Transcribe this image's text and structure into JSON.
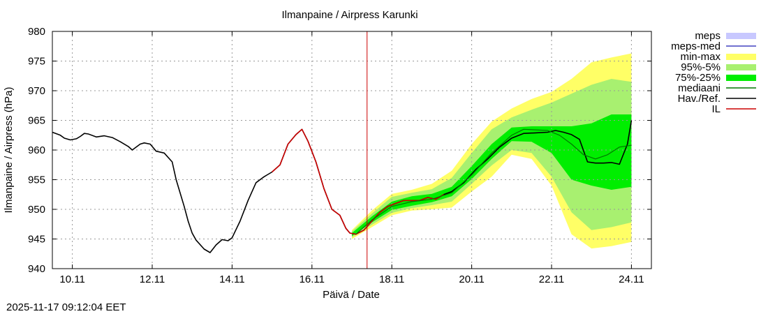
{
  "chart_data": {
    "type": "line",
    "title": "Ilmanpaine / Airpress Karunki",
    "xlabel": "Päivä / Date",
    "ylabel": "Ilmanpaine / Airpress (hPa)",
    "timestamp": "2025-11-17 09:12:04 EET",
    "x_unit": "days since 2025-11-09 00:00",
    "xlim": [
      9.5,
      24.5
    ],
    "ylim": [
      940,
      980
    ],
    "x_ticks": [
      {
        "x": 10,
        "label": "10.11"
      },
      {
        "x": 12,
        "label": "12.11"
      },
      {
        "x": 14,
        "label": "14.11"
      },
      {
        "x": 16,
        "label": "16.11"
      },
      {
        "x": 18,
        "label": "18.11"
      },
      {
        "x": 20,
        "label": "20.11"
      },
      {
        "x": 22,
        "label": "22.11"
      },
      {
        "x": 24,
        "label": "24.11"
      }
    ],
    "y_ticks": [
      940,
      945,
      950,
      955,
      960,
      965,
      970,
      975,
      980
    ],
    "grid": true,
    "legend_position": "outside-right",
    "now_line_x": 17.38,
    "colors": {
      "meps": "#c8c8ff",
      "meps_med": "#4040c0",
      "minmax": "#ffff66",
      "p95_5": "#a8f070",
      "p75_25": "#00ee00",
      "mediaani": "#007700",
      "havref": "#000000",
      "il": "#cc0000",
      "now_line": "#cc0000",
      "grid": "#999999"
    },
    "legend": [
      {
        "key": "meps",
        "label": "meps",
        "style": "band",
        "color": "#c8c8ff"
      },
      {
        "key": "meps_med",
        "label": "meps-med",
        "style": "line",
        "color": "#4040c0"
      },
      {
        "key": "minmax",
        "label": "min-max",
        "style": "band",
        "color": "#ffff66"
      },
      {
        "key": "p95_5",
        "label": "95%-5%",
        "style": "band",
        "color": "#a8f070"
      },
      {
        "key": "p75_25",
        "label": "75%-25%",
        "style": "band",
        "color": "#00ee00"
      },
      {
        "key": "mediaani",
        "label": "mediaani",
        "style": "line",
        "color": "#007700"
      },
      {
        "key": "havref",
        "label": "Hav./Ref.",
        "style": "line",
        "color": "#000000"
      },
      {
        "key": "il",
        "label": "IL",
        "style": "line",
        "color": "#cc0000"
      }
    ],
    "series": [
      {
        "name": "Hav./Ref.",
        "x": [
          9.5,
          9.7,
          9.8,
          9.95,
          10.1,
          10.2,
          10.3,
          10.4,
          10.6,
          10.8,
          11.0,
          11.2,
          11.4,
          11.5,
          11.7,
          11.8,
          11.95,
          12.1,
          12.3,
          12.5,
          12.6,
          12.8,
          12.9,
          13.0,
          13.1,
          13.3,
          13.45,
          13.6,
          13.75,
          13.9,
          14.0,
          14.2,
          14.4,
          14.6,
          14.8,
          15.0,
          15.2,
          15.4,
          15.6,
          15.75,
          15.9,
          16.1,
          16.3,
          16.5,
          16.7,
          16.85,
          16.95,
          17.1,
          17.3,
          17.5,
          17.7,
          17.9,
          18.1,
          18.3,
          18.5,
          18.7,
          18.9,
          19.1,
          19.3,
          19.5,
          19.8,
          20.1,
          20.4,
          20.7,
          21.0,
          21.3,
          21.6,
          21.9,
          22.1,
          22.3,
          22.5,
          22.7,
          22.9,
          23.1,
          23.3,
          23.5,
          23.7,
          23.9,
          24.0
        ],
        "values": [
          963.0,
          962.5,
          962.0,
          961.7,
          961.9,
          962.3,
          962.8,
          962.7,
          962.2,
          962.4,
          962.1,
          961.4,
          960.6,
          960.0,
          961.0,
          961.2,
          961.0,
          959.8,
          959.5,
          958.0,
          955.0,
          950.5,
          948.0,
          946.0,
          944.8,
          943.3,
          942.7,
          944.0,
          944.9,
          944.7,
          945.2,
          948.0,
          951.5,
          954.5,
          955.5,
          956.3,
          957.5,
          961.0,
          962.6,
          963.5,
          961.5,
          958.0,
          953.5,
          950.0,
          949.0,
          946.8,
          946.0,
          945.8,
          946.5,
          948.0,
          949.5,
          950.5,
          951.0,
          951.5,
          951.5,
          951.5,
          952.0,
          951.7,
          952.5,
          953.0,
          954.5,
          956.7,
          958.5,
          960.5,
          962.0,
          962.8,
          962.9,
          963.0,
          963.3,
          963.0,
          962.6,
          961.8,
          958.0,
          957.8,
          957.8,
          957.9,
          957.6,
          961.0,
          965.0
        ]
      },
      {
        "name": "IL",
        "x": [
          15.0,
          15.2,
          15.4,
          15.6,
          15.75,
          15.9,
          16.1,
          16.3,
          16.5,
          16.7,
          16.85,
          16.95,
          17.1,
          17.3,
          17.5,
          17.7,
          17.9,
          18.1,
          18.3,
          18.5,
          18.7,
          18.9,
          19.1,
          19.3
        ],
        "values": [
          956.3,
          957.5,
          961.0,
          962.6,
          963.5,
          961.5,
          958.0,
          953.5,
          950.0,
          949.0,
          946.8,
          946.0,
          945.8,
          946.5,
          948.0,
          949.5,
          950.5,
          951.0,
          951.5,
          951.5,
          951.5,
          952.0,
          951.7,
          952.5
        ]
      },
      {
        "name": "mediaani",
        "x": [
          17.1,
          17.5,
          18.0,
          18.5,
          19.0,
          19.5,
          20.0,
          20.5,
          21.0,
          21.3,
          21.6,
          21.9,
          22.2,
          22.5,
          22.8,
          23.1,
          23.4,
          23.7,
          24.0
        ],
        "values": [
          945.8,
          948.2,
          950.5,
          951.3,
          951.7,
          952.8,
          955.8,
          959.5,
          962.5,
          963.5,
          963.4,
          963.3,
          962.5,
          961.0,
          959.2,
          958.5,
          959.2,
          960.5,
          960.8
        ]
      }
    ],
    "bands": [
      {
        "name": "min-max",
        "x": [
          17.0,
          17.5,
          18.0,
          18.5,
          19.0,
          19.5,
          20.0,
          20.5,
          21.0,
          21.5,
          22.0,
          22.5,
          23.0,
          23.5,
          24.0
        ],
        "upper": [
          946.5,
          949.8,
          952.6,
          953.3,
          954.3,
          956.5,
          961.0,
          964.8,
          967.0,
          968.6,
          969.8,
          972.0,
          974.8,
          975.6,
          976.3
        ],
        "lower": [
          945.0,
          947.0,
          949.0,
          949.8,
          950.0,
          950.3,
          953.0,
          955.5,
          959.2,
          958.5,
          954.0,
          945.8,
          943.4,
          943.8,
          944.5
        ]
      },
      {
        "name": "95%-5%",
        "x": [
          17.0,
          17.5,
          18.0,
          18.5,
          19.0,
          19.5,
          20.0,
          20.5,
          21.0,
          21.5,
          22.0,
          22.5,
          23.0,
          23.5,
          24.0
        ],
        "upper": [
          946.3,
          949.3,
          952.1,
          952.8,
          953.4,
          955.3,
          959.5,
          963.5,
          965.5,
          966.8,
          968.0,
          969.5,
          971.0,
          972.0,
          971.5
        ],
        "lower": [
          945.3,
          947.4,
          949.4,
          950.2,
          950.7,
          951.3,
          954.3,
          957.4,
          960.0,
          959.5,
          955.5,
          949.5,
          946.5,
          947.0,
          947.8
        ]
      },
      {
        "name": "75%-25%",
        "x": [
          17.0,
          17.5,
          18.0,
          18.5,
          19.0,
          19.5,
          20.0,
          20.5,
          21.0,
          21.5,
          22.0,
          22.5,
          23.0,
          23.5,
          24.0
        ],
        "upper": [
          946.0,
          948.8,
          951.3,
          952.2,
          952.6,
          953.8,
          957.3,
          961.0,
          963.8,
          964.0,
          964.0,
          964.0,
          964.5,
          966.0,
          966.0
        ],
        "lower": [
          945.5,
          947.8,
          949.9,
          950.6,
          951.2,
          952.2,
          955.1,
          958.5,
          961.5,
          961.4,
          959.5,
          955.0,
          954.0,
          953.3,
          953.8
        ]
      }
    ]
  }
}
